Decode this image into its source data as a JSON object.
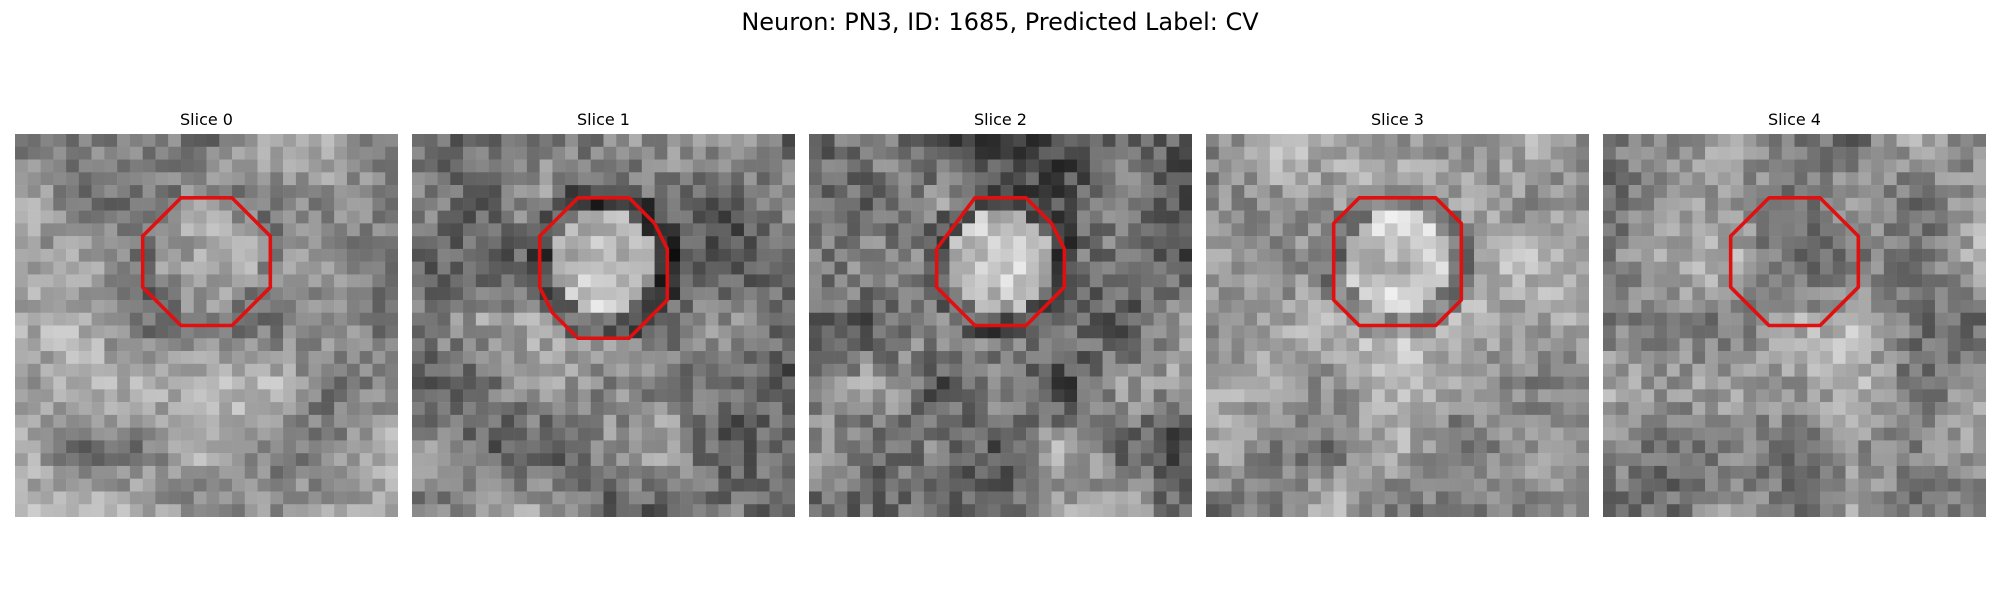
{
  "figure": {
    "title": "Neuron: PN3, ID: 1685, Predicted Label: CV"
  },
  "panels": [
    {
      "title": "Slice 0",
      "seed": 11,
      "base": 150,
      "contrast": 45,
      "center_tone": 10,
      "ring_tone": -20,
      "contour": [
        [
          13,
          5
        ],
        [
          17,
          5
        ],
        [
          20,
          8
        ],
        [
          20,
          12
        ],
        [
          17,
          15
        ],
        [
          13,
          15
        ],
        [
          10,
          12
        ],
        [
          10,
          8
        ]
      ]
    },
    {
      "title": "Slice 1",
      "seed": 23,
      "base": 125,
      "contrast": 50,
      "center_tone": 60,
      "ring_tone": -50,
      "contour": [
        [
          13,
          5
        ],
        [
          17,
          5
        ],
        [
          19,
          7
        ],
        [
          20,
          9
        ],
        [
          20,
          13
        ],
        [
          17,
          16
        ],
        [
          13,
          16
        ],
        [
          11,
          14
        ],
        [
          10,
          12
        ],
        [
          10,
          8
        ]
      ]
    },
    {
      "title": "Slice 2",
      "seed": 37,
      "base": 120,
      "contrast": 55,
      "center_tone": 50,
      "ring_tone": -40,
      "contour": [
        [
          13,
          5
        ],
        [
          17,
          5
        ],
        [
          19,
          7
        ],
        [
          20,
          9
        ],
        [
          20,
          12
        ],
        [
          17,
          15
        ],
        [
          13,
          15
        ],
        [
          10,
          12
        ],
        [
          10,
          9
        ]
      ]
    },
    {
      "title": "Slice 3",
      "seed": 51,
      "base": 150,
      "contrast": 45,
      "center_tone": 55,
      "ring_tone": -45,
      "contour": [
        [
          12,
          5
        ],
        [
          18,
          5
        ],
        [
          20,
          7
        ],
        [
          20,
          13
        ],
        [
          18,
          15
        ],
        [
          12,
          15
        ],
        [
          10,
          13
        ],
        [
          10,
          7
        ]
      ]
    },
    {
      "title": "Slice 4",
      "seed": 67,
      "base": 150,
      "contrast": 45,
      "center_tone": -25,
      "ring_tone": -10,
      "contour": [
        [
          13,
          5
        ],
        [
          17,
          5
        ],
        [
          20,
          8
        ],
        [
          20,
          12
        ],
        [
          17,
          15
        ],
        [
          13,
          15
        ],
        [
          10,
          12
        ],
        [
          10,
          8
        ]
      ]
    }
  ],
  "colors": {
    "contour": "#e01010"
  }
}
